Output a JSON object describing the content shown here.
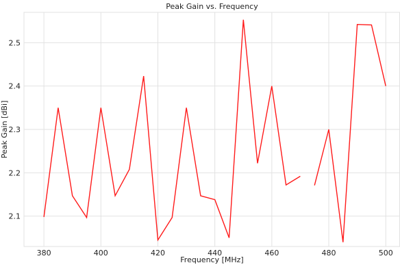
{
  "chart_data": {
    "type": "line",
    "title": "Peak Gain vs. Frequency",
    "xlabel": "Frequency [MHz]",
    "ylabel": "Peak Gain [dBi]",
    "xlim": [
      373,
      505
    ],
    "ylim": [
      2.03,
      2.57
    ],
    "xticks": [
      380,
      400,
      420,
      440,
      460,
      480,
      500
    ],
    "yticks": [
      2.1,
      2.2,
      2.3,
      2.4,
      2.5
    ],
    "xtick_labels": [
      "380",
      "400",
      "420",
      "440",
      "460",
      "480",
      "500"
    ],
    "ytick_labels": [
      "2.1",
      "2.2",
      "2.3",
      "2.4",
      "2.5"
    ],
    "grid": true,
    "color": "#ff1a1a",
    "segments": [
      {
        "x": [
          380,
          385,
          390,
          395,
          400,
          405,
          410,
          415,
          420,
          425,
          430,
          435,
          440,
          445,
          450,
          455,
          460,
          465,
          470
        ],
        "y": [
          2.098,
          2.35,
          2.147,
          2.097,
          2.35,
          2.147,
          2.208,
          2.423,
          2.045,
          2.097,
          2.35,
          2.147,
          2.138,
          2.05,
          2.553,
          2.222,
          2.4,
          2.172,
          2.192
        ]
      },
      {
        "x": [
          475,
          480,
          485,
          490,
          495,
          500
        ],
        "y": [
          2.171,
          2.3,
          2.04,
          2.542,
          2.541,
          2.4
        ]
      }
    ]
  }
}
